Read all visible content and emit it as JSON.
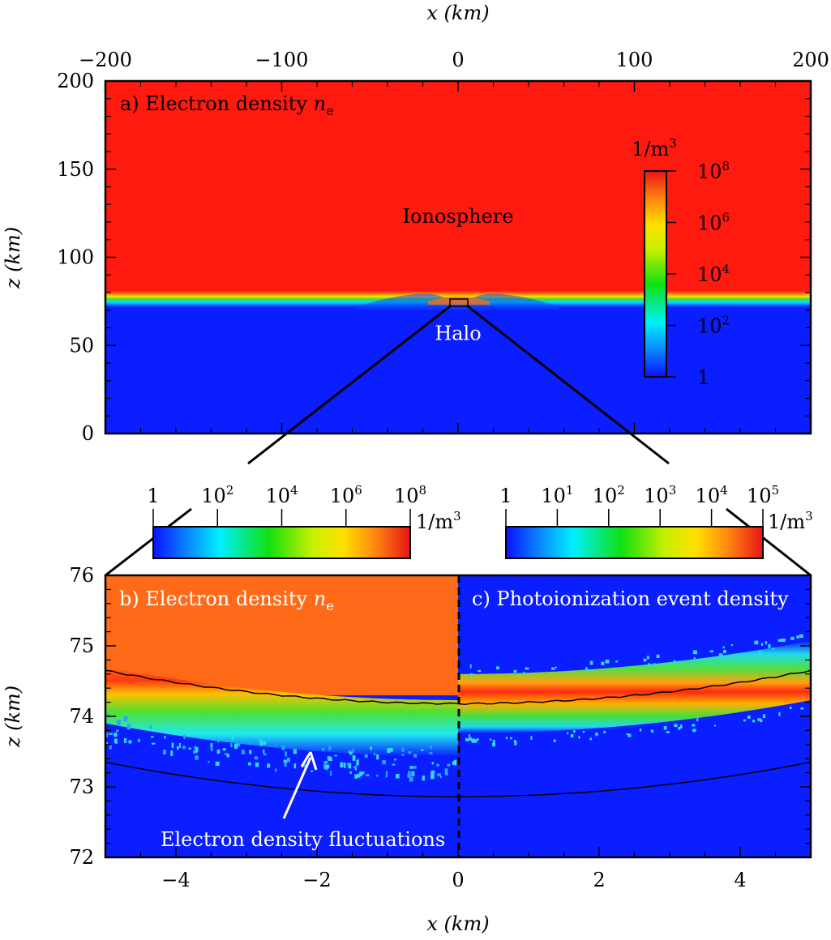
{
  "chart_data": [
    {
      "panel": "a",
      "type": "heatmap",
      "title": "a) Electron density",
      "title_symbol": "n",
      "title_subscript": "e",
      "xlabel": "x (km)",
      "ylabel": "z (km)",
      "xlim": [
        -200,
        200
      ],
      "ylim": [
        0,
        200
      ],
      "xticks": [
        -200,
        -100,
        0,
        100,
        200
      ],
      "xtick_labels": [
        "−200",
        "−100",
        "0",
        "100",
        "200"
      ],
      "yticks": [
        0,
        50,
        100,
        150,
        200
      ],
      "ytick_labels": [
        "0",
        "50",
        "100",
        "150",
        "200"
      ],
      "x_axis_position": "top",
      "ionosphere_lower_edge_km": 78,
      "background_lower_density_km": 72,
      "halo_box": {
        "x": [
          -5,
          5
        ],
        "z": [
          72,
          76
        ]
      },
      "annotations": [
        {
          "text": "Ionosphere",
          "x": 0,
          "z": 150
        },
        {
          "text": "Halo",
          "x": 0,
          "z": 60
        }
      ],
      "colorbar": {
        "scale": "log",
        "unit": "1/m",
        "unit_exponent": "3",
        "range": [
          1,
          100000000
        ],
        "tick_base": [
          "1",
          "10",
          "10",
          "10",
          "10"
        ],
        "tick_exponents": [
          "",
          "2",
          "4",
          "6",
          "8"
        ],
        "placement": "right-inside"
      },
      "colors": {
        "high": "#ff1a10",
        "low": "#0a1eff"
      }
    },
    {
      "panel": "b",
      "type": "heatmap",
      "title": "b) Electron density",
      "title_symbol": "n",
      "title_subscript": "e",
      "xlim": [
        -5,
        0
      ],
      "ylim": [
        72,
        76
      ],
      "annotation": {
        "text": "Electron density fluctuations",
        "x": -2.2,
        "z": 72.3
      },
      "colorbar": {
        "scale": "log",
        "unit": "1/m",
        "unit_exponent": "3",
        "range": [
          1,
          100000000
        ],
        "tick_base": [
          "1",
          "10",
          "10",
          "10",
          "10"
        ],
        "tick_exponents": [
          "",
          "2",
          "4",
          "6",
          "8"
        ],
        "placement": "top-left"
      }
    },
    {
      "panel": "c",
      "type": "heatmap",
      "title": "c) Photoionization event density",
      "xlim": [
        0,
        5
      ],
      "ylim": [
        72,
        76
      ],
      "colorbar": {
        "scale": "log",
        "unit": "1/m",
        "unit_exponent": "3",
        "range": [
          1,
          100000
        ],
        "tick_base": [
          "1",
          "10",
          "10",
          "10",
          "10",
          "10"
        ],
        "tick_exponents": [
          "",
          "1",
          "2",
          "3",
          "4",
          "5"
        ],
        "placement": "top-right"
      }
    },
    {
      "panel": "bc-axes",
      "xlabel": "x (km)",
      "ylabel": "z (km)",
      "xlim": [
        -5,
        5
      ],
      "ylim": [
        72,
        76
      ],
      "xticks": [
        -4,
        -2,
        0,
        2,
        4
      ],
      "xtick_labels": [
        "−4",
        "−2",
        "0",
        "2",
        "4"
      ],
      "yticks": [
        72,
        73,
        74,
        75,
        76
      ],
      "ytick_labels": [
        "72",
        "73",
        "74",
        "75",
        "76"
      ],
      "front_curve_z_at_x0": 74.18,
      "front_curve_z_at_edges": 74.65,
      "lower_curve_z_at_x0": 72.86,
      "lower_curve_z_at_edges": 73.35
    }
  ]
}
